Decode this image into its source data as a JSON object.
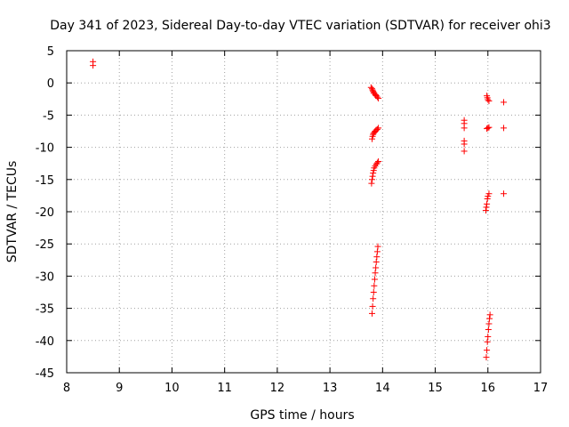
{
  "chart_data": {
    "type": "scatter",
    "title": "Day 341 of 2023, Sidereal Day-to-day VTEC variation (SDTVAR) for receiver ohi3",
    "xlabel": "GPS time / hours",
    "ylabel": "SDTVAR / TECUs",
    "xlim": [
      8,
      17
    ],
    "ylim": [
      -45,
      5
    ],
    "xticks": [
      8,
      9,
      10,
      11,
      12,
      13,
      14,
      15,
      16,
      17
    ],
    "yticks": [
      5,
      0,
      -5,
      -10,
      -15,
      -20,
      -25,
      -30,
      -35,
      -40,
      -45
    ],
    "grid": true,
    "marker": "+",
    "color": "#ff0000",
    "series": [
      {
        "name": "SDTVAR",
        "points": [
          [
            8.5,
            3.3
          ],
          [
            8.5,
            2.7
          ],
          [
            13.78,
            -0.7
          ],
          [
            13.8,
            -0.9
          ],
          [
            13.81,
            -1.1
          ],
          [
            13.82,
            -1.3
          ],
          [
            13.83,
            -1.5
          ],
          [
            13.84,
            -1.6
          ],
          [
            13.86,
            -1.8
          ],
          [
            13.87,
            -1.9
          ],
          [
            13.88,
            -2.0
          ],
          [
            13.9,
            -2.2
          ],
          [
            13.92,
            -2.4
          ],
          [
            13.8,
            -8.7
          ],
          [
            13.81,
            -8.3
          ],
          [
            13.82,
            -8.0
          ],
          [
            13.83,
            -7.8
          ],
          [
            13.85,
            -7.6
          ],
          [
            13.86,
            -7.5
          ],
          [
            13.88,
            -7.3
          ],
          [
            13.9,
            -7.2
          ],
          [
            13.92,
            -7.0
          ],
          [
            13.79,
            -15.6
          ],
          [
            13.8,
            -15.0
          ],
          [
            13.81,
            -14.5
          ],
          [
            13.82,
            -14.0
          ],
          [
            13.83,
            -13.6
          ],
          [
            13.84,
            -13.2
          ],
          [
            13.86,
            -12.9
          ],
          [
            13.88,
            -12.6
          ],
          [
            13.9,
            -12.4
          ],
          [
            13.92,
            -12.2
          ],
          [
            13.8,
            -35.8
          ],
          [
            13.81,
            -34.7
          ],
          [
            13.82,
            -33.5
          ],
          [
            13.83,
            -32.5
          ],
          [
            13.84,
            -31.5
          ],
          [
            13.85,
            -30.5
          ],
          [
            13.86,
            -29.5
          ],
          [
            13.87,
            -28.7
          ],
          [
            13.88,
            -27.8
          ],
          [
            13.89,
            -27.0
          ],
          [
            13.9,
            -26.2
          ],
          [
            13.91,
            -25.4
          ],
          [
            15.55,
            -5.8
          ],
          [
            15.55,
            -6.3
          ],
          [
            15.55,
            -7.0
          ],
          [
            15.55,
            -9.0
          ],
          [
            15.55,
            -9.5
          ],
          [
            15.55,
            -10.6
          ],
          [
            15.98,
            -2.0
          ],
          [
            15.99,
            -2.3
          ],
          [
            16.0,
            -2.6
          ],
          [
            16.02,
            -2.8
          ],
          [
            15.98,
            -7.1
          ],
          [
            16.0,
            -7.0
          ],
          [
            16.02,
            -6.9
          ],
          [
            15.96,
            -19.8
          ],
          [
            15.97,
            -19.3
          ],
          [
            15.98,
            -18.8
          ],
          [
            15.99,
            -18.0
          ],
          [
            16.0,
            -17.6
          ],
          [
            16.02,
            -17.2
          ],
          [
            15.97,
            -42.6
          ],
          [
            15.98,
            -41.5
          ],
          [
            15.99,
            -40.2
          ],
          [
            16.0,
            -39.4
          ],
          [
            16.01,
            -38.3
          ],
          [
            16.02,
            -37.4
          ],
          [
            16.03,
            -36.6
          ],
          [
            16.04,
            -36.0
          ],
          [
            16.3,
            -3.0
          ],
          [
            16.3,
            -7.0
          ],
          [
            16.3,
            -17.2
          ]
        ]
      }
    ]
  }
}
